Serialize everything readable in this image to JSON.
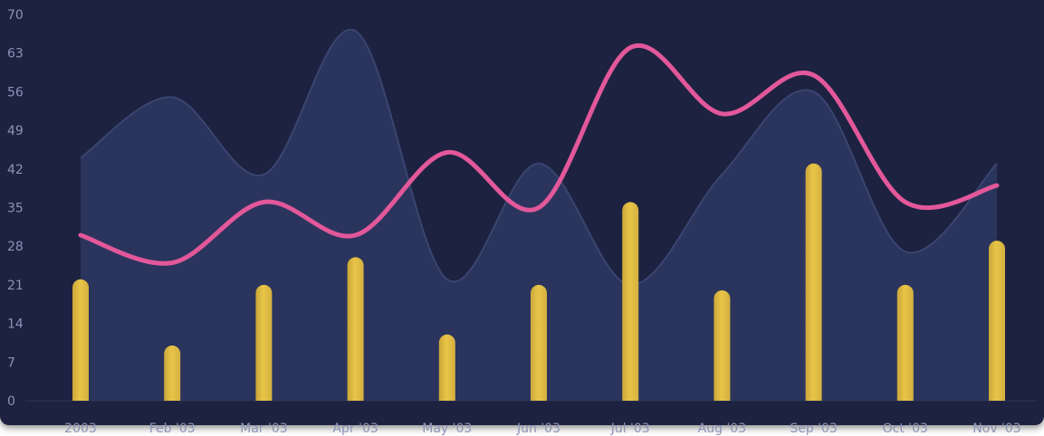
{
  "chart_data": {
    "type": "bar",
    "categories": [
      "2003",
      "Feb '03",
      "Mar '03",
      "Apr '03",
      "May '03",
      "Jun '03",
      "Jul '03",
      "Aug '03",
      "Sep '03",
      "Oct '03",
      "Nov '03"
    ],
    "ylim": [
      0,
      70
    ],
    "yticks": [
      0,
      7,
      14,
      21,
      28,
      35,
      42,
      49,
      56,
      63,
      70
    ],
    "grid": false,
    "title": "",
    "xlabel": "",
    "ylabel": "",
    "series": [
      {
        "type": "area",
        "color": "#2c3660",
        "values": [
          44,
          55,
          41,
          67,
          22,
          43,
          21,
          41,
          56,
          27,
          43
        ]
      },
      {
        "type": "bar",
        "color": "#e8c547",
        "values": [
          22,
          10,
          21,
          26,
          12,
          21,
          36,
          20,
          43,
          21,
          29
        ]
      },
      {
        "type": "line",
        "color": "#e2589a",
        "values": [
          30,
          25,
          36,
          30,
          45,
          35,
          64,
          52,
          59,
          36,
          39
        ]
      }
    ]
  }
}
